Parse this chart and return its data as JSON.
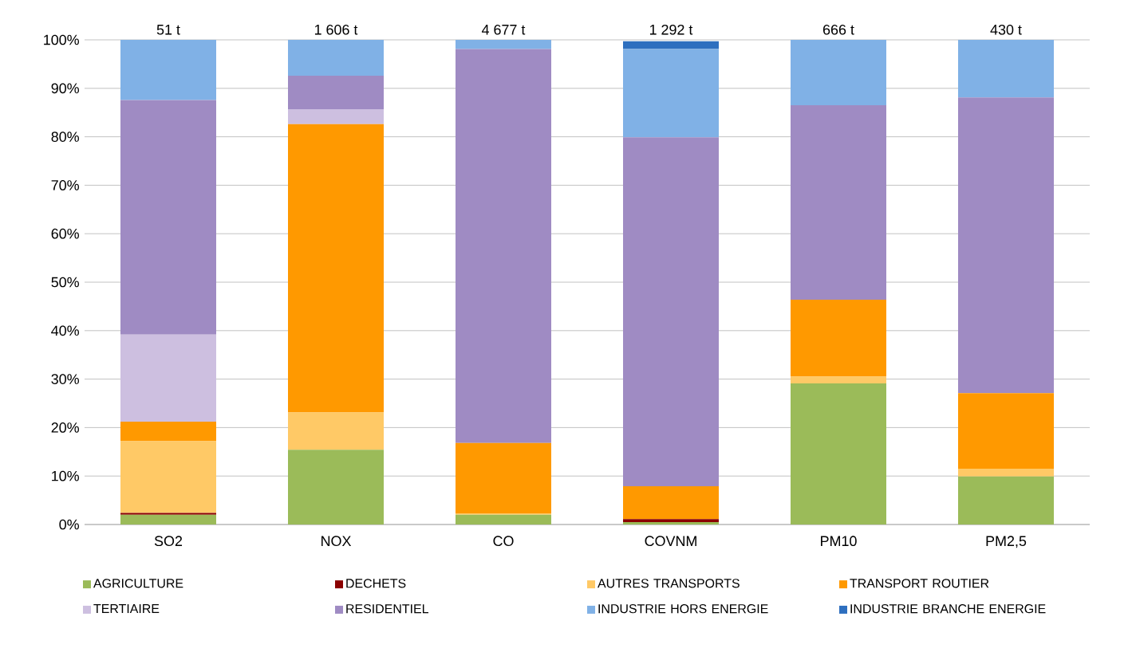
{
  "chart_data": {
    "type": "bar",
    "stacked": true,
    "categories": [
      "SO2",
      "NOX",
      "CO",
      "COVNM",
      "PM10",
      "PM2,5"
    ],
    "annotations": [
      {
        "text": "51 t",
        "x": "SO2",
        "y": 100
      },
      {
        "text": "1 606 t",
        "x": "NOX",
        "y": 100
      },
      {
        "text": "4 677 t",
        "x": "CO",
        "y": 100
      },
      {
        "text": "1 292 t",
        "x": "COVNM",
        "y": 100
      },
      {
        "text": "666 t",
        "x": "PM10",
        "y": 100
      },
      {
        "text": "430 t",
        "x": "PM2,5",
        "y": 100
      }
    ],
    "series": [
      {
        "name": "AGRICULTURE",
        "color": "#9bbb59",
        "values": [
          2.0,
          15.4,
          2.0,
          0.5,
          29.1,
          9.9
        ]
      },
      {
        "name": "DECHETS",
        "color": "#8b0000",
        "values": [
          0.4,
          0,
          0,
          0.6,
          0,
          0
        ]
      },
      {
        "name": "AUTRES TRANSPORTS",
        "color": "#ffc966",
        "values": [
          14.8,
          7.7,
          0.3,
          0,
          1.4,
          1.6
        ]
      },
      {
        "name": "TRANSPORT ROUTIER",
        "color": "#ff9900",
        "values": [
          4.0,
          59.5,
          14.5,
          6.8,
          15.9,
          15.6
        ]
      },
      {
        "name": "TERTIAIRE",
        "color": "#cdbfe0",
        "values": [
          18.0,
          3.1,
          0,
          null,
          0,
          0
        ]
      },
      {
        "name": "RESIDENTIEL",
        "color": "#9f8bc3",
        "values": [
          48.4,
          6.9,
          81.3,
          72.0,
          40.1,
          61.0
        ]
      },
      {
        "name": "INDUSTRIE HORS ENERGIE",
        "color": "#80b1e6",
        "values": [
          12.4,
          7.4,
          1.9,
          18.2,
          13.5,
          11.9
        ]
      },
      {
        "name": "INDUSTRIE BRANCHE ENERGIE",
        "color": "#2e6fbf",
        "values": [
          0,
          0,
          0,
          1.6,
          0,
          0
        ]
      }
    ],
    "ylim": [
      0,
      100
    ],
    "yticks": [
      {
        "value": 0,
        "label": "0%"
      },
      {
        "value": 10,
        "label": "10%"
      },
      {
        "value": 20,
        "label": "20%"
      },
      {
        "value": 30,
        "label": "30%"
      },
      {
        "value": 40,
        "label": "40%"
      },
      {
        "value": 50,
        "label": "50%"
      },
      {
        "value": 60,
        "label": "60%"
      },
      {
        "value": 70,
        "label": "70%"
      },
      {
        "value": 80,
        "label": "80%"
      },
      {
        "value": 90,
        "label": "90%"
      },
      {
        "value": 100,
        "label": "100%"
      }
    ],
    "grid": "y",
    "legend": "bottom"
  }
}
